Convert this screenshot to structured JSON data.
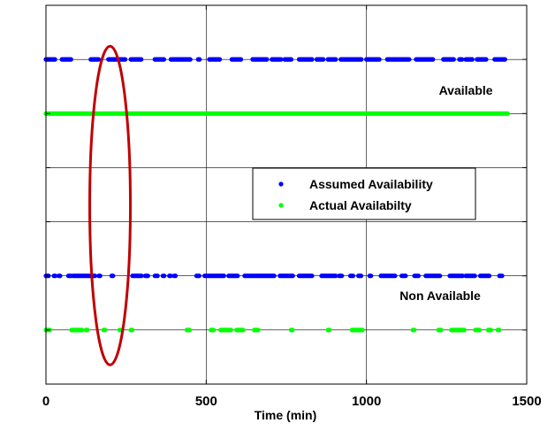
{
  "chart_data": {
    "type": "scatter",
    "xlabel": "Time (min)",
    "xlim": [
      0,
      1500
    ],
    "x_ticks": [
      "0",
      "500",
      "1000",
      "1500"
    ],
    "grid": true,
    "legend_position": "center-right",
    "annotations": [
      {
        "text": "Available",
        "x": 1310,
        "y": 5.35
      },
      {
        "text": "Non Available",
        "x": 1230,
        "y": 1.55
      }
    ],
    "highlight_ellipse": {
      "color": "#c00000",
      "center_x": 200,
      "center_y": 3.3
    },
    "series": [
      {
        "name": "Assumed Availability",
        "color": "#0000ff",
        "y": 6,
        "segments": [
          [
            0,
            30
          ],
          [
            50,
            80
          ],
          [
            140,
            165
          ],
          [
            195,
            250
          ],
          [
            265,
            300
          ],
          [
            340,
            370
          ],
          [
            390,
            450
          ],
          [
            475,
            480
          ],
          [
            510,
            545
          ],
          [
            580,
            610
          ],
          [
            645,
            690
          ],
          [
            705,
            735
          ],
          [
            745,
            765
          ],
          [
            790,
            830
          ],
          [
            845,
            865
          ],
          [
            880,
            905
          ],
          [
            920,
            985
          ],
          [
            1000,
            1040
          ],
          [
            1065,
            1135
          ],
          [
            1155,
            1210
          ],
          [
            1240,
            1275
          ],
          [
            1290,
            1300
          ],
          [
            1310,
            1330
          ],
          [
            1345,
            1375
          ],
          [
            1400,
            1435
          ]
        ]
      },
      {
        "name": "Actual Availabilty",
        "color": "#00ff00",
        "y": 5,
        "segments": [
          [
            0,
            1440
          ]
        ]
      },
      {
        "name": "Assumed Availability",
        "color": "#0000ff",
        "y": 2,
        "segments": [
          [
            0,
            10
          ],
          [
            25,
            30
          ],
          [
            40,
            45
          ],
          [
            70,
            80
          ],
          [
            85,
            155
          ],
          [
            165,
            170
          ],
          [
            205,
            210
          ],
          [
            270,
            300
          ],
          [
            310,
            320
          ],
          [
            340,
            350
          ],
          [
            365,
            370
          ],
          [
            385,
            390
          ],
          [
            400,
            405
          ],
          [
            470,
            480
          ],
          [
            495,
            555
          ],
          [
            570,
            600
          ],
          [
            620,
            715
          ],
          [
            730,
            770
          ],
          [
            790,
            830
          ],
          [
            860,
            905
          ],
          [
            915,
            925
          ],
          [
            950,
            960
          ],
          [
            975,
            985
          ],
          [
            1010,
            1015
          ],
          [
            1045,
            1090
          ],
          [
            1110,
            1125
          ],
          [
            1150,
            1165
          ],
          [
            1185,
            1230
          ],
          [
            1260,
            1300
          ],
          [
            1310,
            1340
          ],
          [
            1355,
            1385
          ],
          [
            1415,
            1425
          ]
        ]
      },
      {
        "name": "Actual Availabilty",
        "color": "#00ff00",
        "y": 1,
        "segments": [
          [
            0,
            15
          ],
          [
            80,
            115
          ],
          [
            125,
            130
          ],
          [
            180,
            185
          ],
          [
            230,
            235
          ],
          [
            265,
            270
          ],
          [
            440,
            450
          ],
          [
            515,
            525
          ],
          [
            545,
            580
          ],
          [
            595,
            615
          ],
          [
            650,
            665
          ],
          [
            765,
            770
          ],
          [
            880,
            885
          ],
          [
            955,
            990
          ],
          [
            1145,
            1150
          ],
          [
            1225,
            1235
          ],
          [
            1265,
            1305
          ],
          [
            1340,
            1355
          ],
          [
            1380,
            1390
          ],
          [
            1410,
            1415
          ]
        ]
      }
    ]
  }
}
